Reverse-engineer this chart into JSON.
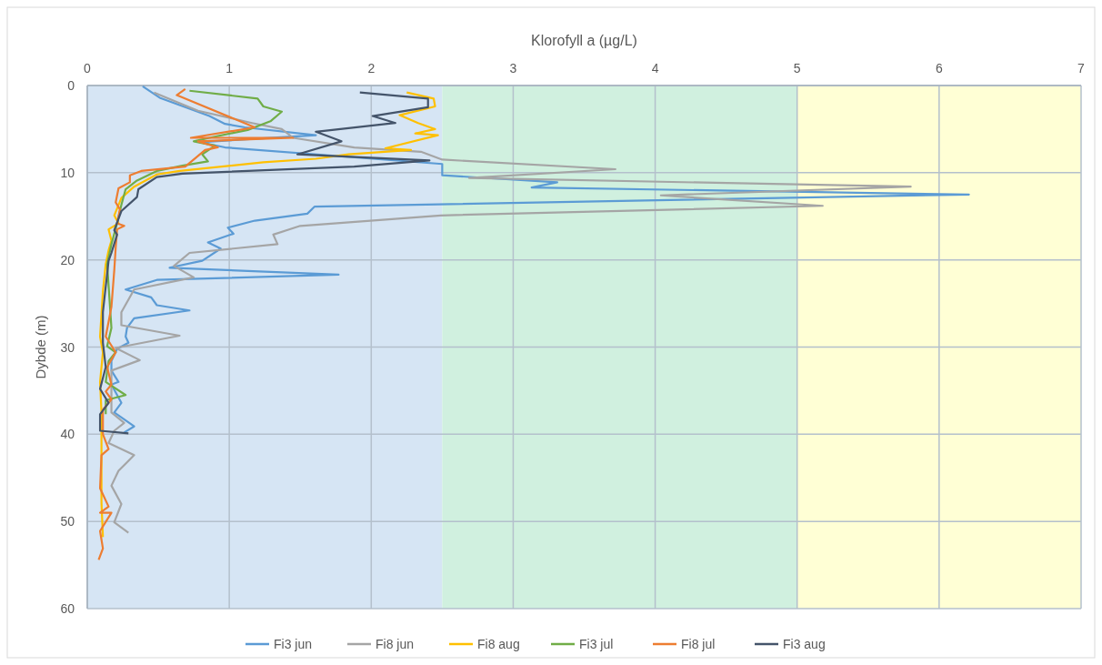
{
  "chart_data": {
    "type": "line",
    "xlabel": "Klorofyll a (µg/L)",
    "ylabel": "Dybde (m)",
    "xlim": [
      0,
      7
    ],
    "xticks": [
      0,
      1,
      2,
      3,
      4,
      5,
      6,
      7
    ],
    "ylim": [
      60,
      0
    ],
    "yticks": [
      0,
      10,
      20,
      30,
      40,
      50,
      60
    ],
    "grid": true,
    "legend": "bottom",
    "line_style": "solid",
    "bands": [
      {
        "axis": "x",
        "from": 0,
        "to": 2.5,
        "color": "#d6e5f4"
      },
      {
        "axis": "x",
        "from": 2.5,
        "to": 5,
        "color": "#d0f0df"
      },
      {
        "axis": "x",
        "from": 5,
        "to": 7,
        "color": "#ffffd5"
      }
    ],
    "series": [
      {
        "name": "Fi3 jun",
        "color": "#5b9bd5",
        "x": [
          0.39,
          0.51,
          0.86,
          0.97,
          1.11,
          1.61,
          0.79,
          0.97,
          2.5,
          2.5,
          3.31,
          3.13,
          6.21,
          1.6,
          1.55,
          1.18,
          0.99,
          1.03,
          0.85,
          0.94,
          0.81,
          0.58,
          1.77,
          0.49,
          0.27,
          0.45,
          0.49,
          0.72,
          0.33,
          0.28,
          0.27,
          0.29,
          0.21,
          0.17,
          0.17,
          0.22,
          0.17,
          0.24,
          0.19,
          0.33,
          0.26
        ],
        "values": [
          0.1,
          1.4,
          3.5,
          4.4,
          4.8,
          5.7,
          6.5,
          7.1,
          9.0,
          10.3,
          11.1,
          11.7,
          12.5,
          13.9,
          14.7,
          15.5,
          16.3,
          17,
          18,
          18.7,
          20.1,
          20.9,
          21.7,
          22.3,
          23.4,
          24.3,
          25.2,
          25.8,
          26.7,
          27.8,
          28.8,
          29.5,
          30.2,
          31.6,
          32.7,
          34,
          34.3,
          36.4,
          37.5,
          39.1,
          39.8
        ]
      },
      {
        "name": "Fi8 jun",
        "color": "#a5a5a5",
        "x": [
          0.47,
          0.78,
          1.16,
          1.37,
          1.45,
          1.88,
          2.35,
          2.5,
          3.72,
          2.69,
          5.8,
          4.04,
          5.18,
          2.49,
          1.5,
          1.31,
          1.34,
          0.72,
          0.61,
          0.75,
          0.33,
          0.24,
          0.24,
          0.65,
          0.2,
          0.37,
          0.17,
          0.17,
          0.17,
          0.26,
          0.19,
          0.15,
          0.33,
          0.22,
          0.17,
          0.24,
          0.19,
          0.29
        ],
        "values": [
          0.8,
          2.9,
          4.3,
          5,
          6,
          7.1,
          7.6,
          8.5,
          9.6,
          10.6,
          11.6,
          12.6,
          13.8,
          14.9,
          16.1,
          17.1,
          18.2,
          19.2,
          20.7,
          22,
          23.4,
          26,
          27.5,
          28.7,
          30.1,
          31.5,
          32.7,
          35.4,
          37.5,
          38.7,
          39.6,
          41,
          42.4,
          44.2,
          45.9,
          48,
          50.1,
          51.3
        ]
      },
      {
        "name": "Fi8 aug",
        "color": "#ffc000",
        "x": [
          2.25,
          2.44,
          2.45,
          2.2,
          2.33,
          2.45,
          2.31,
          2.47,
          2.1,
          2.28,
          1.84,
          1.61,
          1.24,
          0.65,
          0.49,
          0.33,
          0.24,
          0.19,
          0.22,
          0.15,
          0.17,
          0.15,
          0.13,
          0.11,
          0.09,
          0.11,
          0.09,
          0.1,
          0.1,
          0.1,
          0.11
        ],
        "values": [
          0.8,
          1.5,
          2.4,
          3.4,
          4.3,
          5,
          5.5,
          5.7,
          7.2,
          7.4,
          7.9,
          8.4,
          8.8,
          9.8,
          10.2,
          11.6,
          12.9,
          14.9,
          15.8,
          16.5,
          17.8,
          18.9,
          20.5,
          23.6,
          28.8,
          30.6,
          34,
          37.5,
          42.7,
          47.9,
          51.8
        ]
      },
      {
        "name": "Fi3 jul",
        "color": "#70ad47",
        "x": [
          0.72,
          1.2,
          1.24,
          1.37,
          1.29,
          1.13,
          0.86,
          0.75,
          0.9,
          0.81,
          0.85,
          0.67,
          0.49,
          0.35,
          0.27,
          0.24,
          0.21,
          0.17,
          0.14,
          0.17,
          0.14,
          0.2,
          0.15,
          0.13,
          0.27,
          0.13,
          0.13
        ],
        "values": [
          0.6,
          1.5,
          2.4,
          3,
          4.1,
          5.1,
          6,
          6.4,
          6.9,
          7.9,
          8.7,
          9.2,
          9.8,
          10.9,
          11.9,
          13.7,
          15.8,
          18.2,
          20.5,
          27.8,
          29.9,
          30.6,
          31.6,
          34,
          35.5,
          36.1,
          37.7
        ]
      },
      {
        "name": "Fi8 jul",
        "color": "#ed7d31",
        "x": [
          0.69,
          0.63,
          1.18,
          0.73,
          1.45,
          0.78,
          0.92,
          0.83,
          0.69,
          0.38,
          0.3,
          0.3,
          0.22,
          0.2,
          0.23,
          0.21,
          0.26,
          0.21,
          0.2,
          0.19,
          0.17,
          0.13,
          0.2,
          0.14,
          0.17,
          0.13,
          0.17,
          0.11,
          0.11,
          0.15,
          0.1,
          0.09,
          0.15,
          0.09,
          0.17,
          0.09,
          0.11,
          0.08
        ],
        "values": [
          0.4,
          1.1,
          4.8,
          6,
          6,
          6.4,
          7.1,
          7.4,
          9.3,
          9.8,
          10.3,
          11.1,
          11.8,
          13.4,
          14.2,
          15.8,
          16.1,
          16.5,
          18.6,
          21.2,
          25.4,
          28.8,
          30.6,
          32.3,
          34.3,
          35.1,
          36,
          37.2,
          40,
          41.7,
          42.4,
          46.2,
          48.3,
          49,
          49,
          51.1,
          53.1,
          54.4
        ]
      },
      {
        "name": "Fi3 aug",
        "color": "#44546a",
        "x": [
          1.92,
          2.4,
          2.4,
          2.01,
          2.17,
          1.61,
          1.79,
          1.48,
          2.41,
          1.88,
          0.67,
          0.49,
          0.36,
          0.35,
          0.24,
          0.19,
          0.21,
          0.17,
          0.15,
          0.11,
          0.11,
          0.13,
          0.09,
          0.15,
          0.09,
          0.09,
          0.29
        ],
        "values": [
          0.8,
          1.5,
          2.5,
          3.5,
          4.3,
          5.3,
          6.4,
          7.9,
          8.6,
          9.3,
          10.1,
          10.5,
          11.9,
          12.8,
          14.4,
          16.6,
          17.1,
          19.2,
          20.1,
          26,
          29.5,
          32.3,
          34.8,
          36.4,
          37.7,
          39.6,
          39.9
        ]
      }
    ]
  }
}
